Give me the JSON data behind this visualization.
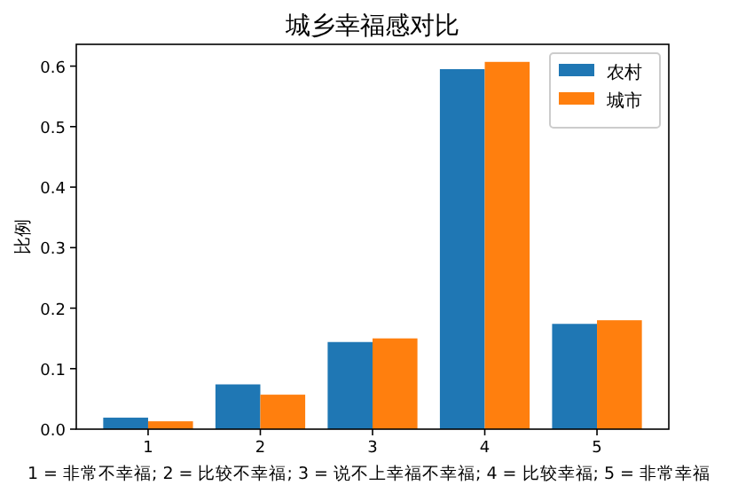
{
  "chart_data": {
    "type": "bar",
    "title": "城乡幸福感对比",
    "xlabel": "1 = 非常不幸福; 2 = 比较不幸福; 3 = 说不上幸福不幸福; 4 = 比较幸福; 5 = 非常幸福",
    "ylabel": "比例",
    "categories": [
      "1",
      "2",
      "3",
      "4",
      "5"
    ],
    "series": [
      {
        "name": "农村",
        "color": "#1f77b4",
        "values": [
          0.019,
          0.074,
          0.144,
          0.595,
          0.174
        ]
      },
      {
        "name": "城市",
        "color": "#ff7f0e",
        "values": [
          0.013,
          0.057,
          0.15,
          0.607,
          0.18
        ]
      }
    ],
    "ylim": [
      0,
      0.636
    ],
    "yticks": [
      {
        "value": 0,
        "label": "0.0"
      },
      {
        "value": 0.1,
        "label": "0.1"
      },
      {
        "value": 0.2,
        "label": "0.2"
      },
      {
        "value": 0.3,
        "label": "0.3"
      },
      {
        "value": 0.4,
        "label": "0.4"
      },
      {
        "value": 0.5,
        "label": "0.5"
      },
      {
        "value": 0.6,
        "label": "0.6"
      }
    ],
    "legend": "top right",
    "grid": false
  }
}
